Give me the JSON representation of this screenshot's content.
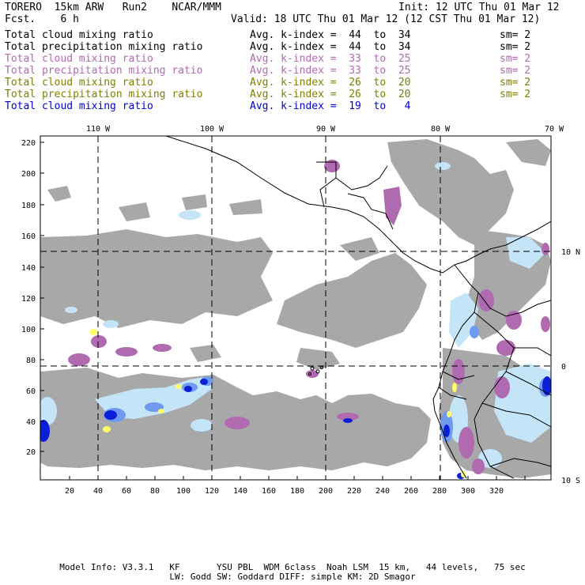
{
  "header": {
    "model": "TORERO  15km ARW   Run2    NCAR/MMM",
    "init": "Init: 12 UTC Thu 01 Mar 12",
    "fcst": "Fcst.    6 h",
    "valid": "Valid: 18 UTC Thu 01 Mar 12 (12 CST Thu 01 Mar 12)"
  },
  "legend": [
    {
      "name": "Total cloud mixing ratio",
      "avg": "Avg. k-index =  44  to  34",
      "sm": "sm= 2",
      "color": "#000000"
    },
    {
      "name": "Total precipitation mixing ratio",
      "avg": "Avg. k-index =  44  to  34",
      "sm": "sm= 2",
      "color": "#000000"
    },
    {
      "name": "Total cloud mixing ratio",
      "avg": "Avg. k-index =  33  to  25",
      "sm": "sm= 2",
      "color": "#b06ab0"
    },
    {
      "name": "Total precipitation mixing ratio",
      "avg": "Avg. k-index =  33  to  25",
      "sm": "sm= 2",
      "color": "#b06ab0"
    },
    {
      "name": "Total cloud mixing ratio",
      "avg": "Avg. k-index =  26  to  20",
      "sm": "sm= 2",
      "color": "#7f7f00"
    },
    {
      "name": "Total precipitation mixing ratio",
      "avg": "Avg. k-index =  26  to  20",
      "sm": "sm= 2",
      "color": "#7f7f00"
    },
    {
      "name": "Total cloud mixing ratio",
      "avg": "Avg. k-index =  19  to   4",
      "sm": "",
      "color": "#0000d0"
    }
  ],
  "map": {
    "top_lon_labels": [
      "110 W",
      "100 W",
      "90 W",
      "80 W",
      "70 W"
    ],
    "right_lat_labels": [
      "10 N",
      "0",
      "10 S"
    ],
    "left_y_ticks": [
      "220",
      "200",
      "180",
      "160",
      "140",
      "120",
      "100",
      "80",
      "60",
      "40",
      "20"
    ],
    "bottom_x_ticks": [
      "20",
      "40",
      "60",
      "80",
      "100",
      "120",
      "140",
      "160",
      "180",
      "200",
      "220",
      "240",
      "260",
      "280",
      "300",
      "320"
    ],
    "colors": {
      "gray_cloud": "#a8a8a8",
      "purple": "#b06ab0",
      "yellow": "#ffff66",
      "light_blue": "#c4e4f8",
      "mid_blue": "#6f9af0",
      "dark_blue": "#0b1fd6",
      "coast": "#000000"
    }
  },
  "footer": {
    "line1": "Model Info: V3.3.1   KF       YSU PBL  WDM 6class  Noah LSM  15 km,   44 levels,   75 sec",
    "line2": "LW: Godd SW: Goddard DIFF: simple KM: 2D Smagor"
  }
}
